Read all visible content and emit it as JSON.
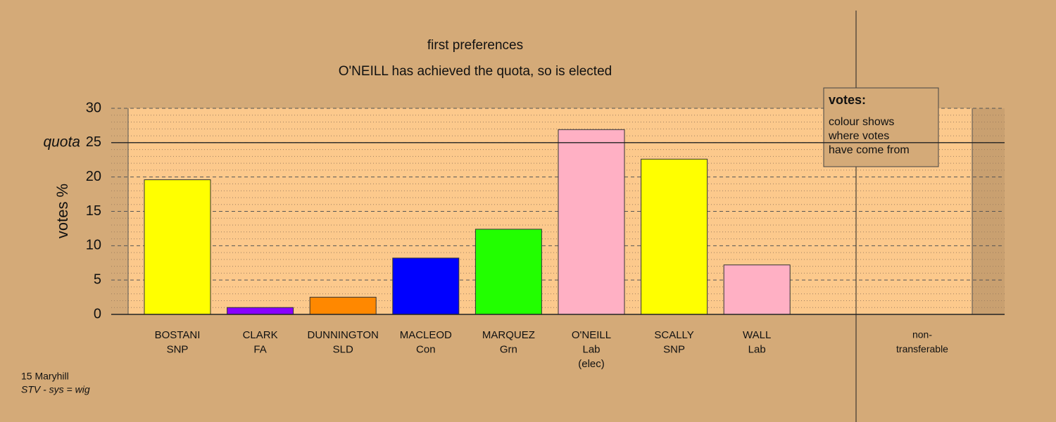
{
  "chart_data": {
    "type": "bar",
    "title": "first preferences",
    "subtitle": "O'NEILL has achieved the quota, so is elected",
    "y_label": "votes %",
    "categories": [
      [
        "BOSTANI",
        "SNP"
      ],
      [
        "CLARK",
        "FA"
      ],
      [
        "DUNNINGTON",
        "SLD"
      ],
      [
        "MACLEOD",
        "Con"
      ],
      [
        "MARQUEZ",
        "Grn"
      ],
      [
        "O'NEILL",
        "Lab",
        "(elec)"
      ],
      [
        "SCALLY",
        "SNP"
      ],
      [
        "WALL",
        "Lab"
      ],
      [
        "non-",
        "transferable"
      ]
    ],
    "values": [
      19.6,
      1.0,
      2.5,
      8.2,
      12.4,
      26.9,
      22.6,
      7.2,
      0
    ],
    "colors": [
      "#ffff00",
      "#8800ff",
      "#ff8800",
      "#0000ff",
      "#22ff00",
      "#ffb0c4",
      "#ffff00",
      "#ffb0c4",
      "#888888"
    ],
    "ylim": [
      0,
      30
    ],
    "yticks": [
      0,
      5,
      10,
      15,
      20,
      25,
      30
    ],
    "minor_yticks": [
      1,
      2,
      3,
      4,
      6,
      7,
      8,
      9,
      11,
      12,
      13,
      14,
      16,
      17,
      18,
      19,
      21,
      22,
      23,
      24,
      26,
      27,
      28,
      29
    ],
    "quota": {
      "value": 25,
      "label": "quota"
    },
    "grid": true,
    "legend": {
      "title": "votes:",
      "lines": [
        "colour shows",
        "where votes",
        "have come from"
      ]
    },
    "footer": [
      "15 Maryhill",
      "STV - sys = wig"
    ]
  }
}
